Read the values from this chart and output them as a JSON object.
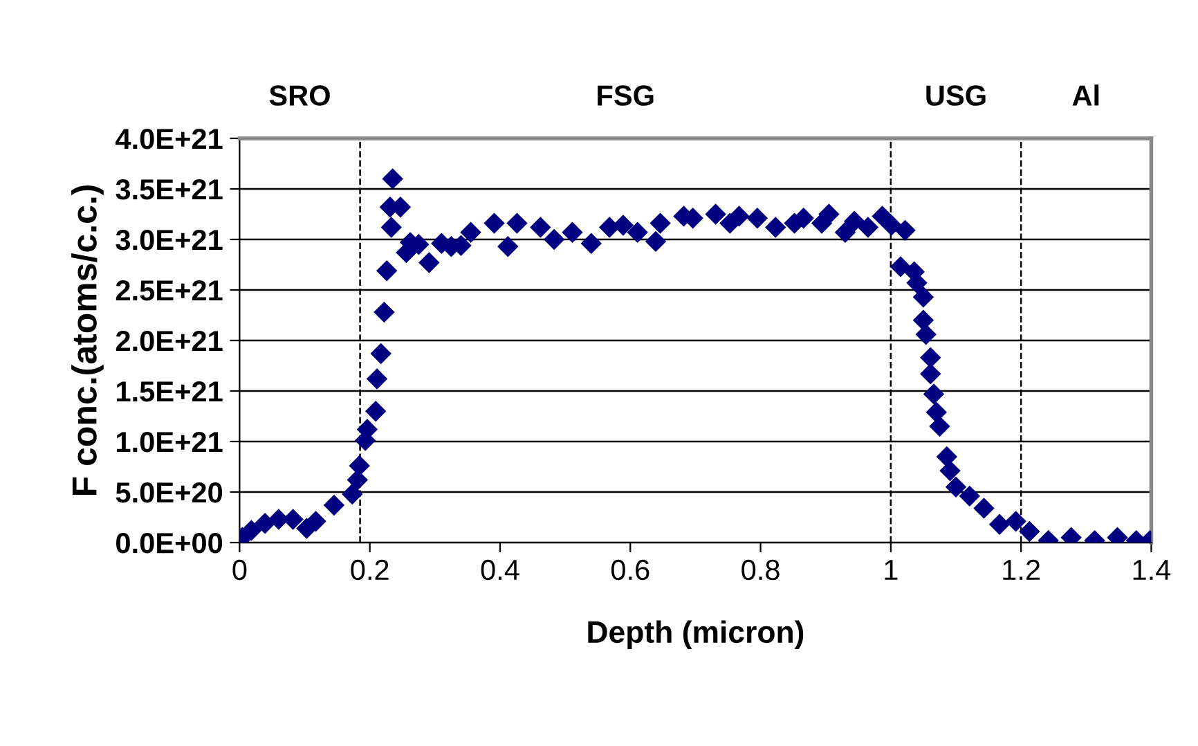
{
  "chart_data": {
    "type": "scatter",
    "xlabel": "Depth (micron)",
    "ylabel": "F conc.(atoms/c.c.)",
    "xlim": [
      0,
      1.4
    ],
    "xticks": [
      0,
      0.2,
      0.4,
      0.6,
      0.8,
      1,
      1.2,
      1.4
    ],
    "ylim": [
      0,
      4e+21
    ],
    "yticks": [
      {
        "value": 0,
        "label": "0.0E+00"
      },
      {
        "value": 5e+20,
        "label": "5.0E+20"
      },
      {
        "value": 1e+21,
        "label": "1.0E+21"
      },
      {
        "value": 1.5e+21,
        "label": "1.5E+21"
      },
      {
        "value": 2e+21,
        "label": "2.0E+21"
      },
      {
        "value": 2.5e+21,
        "label": "2.5E+21"
      },
      {
        "value": 3e+21,
        "label": "3.0E+21"
      },
      {
        "value": 3.5e+21,
        "label": "3.5E+21"
      },
      {
        "value": 4e+21,
        "label": "4.0E+21"
      }
    ],
    "grid": "y",
    "marker": "diamond",
    "legend": false,
    "ref_lines": [
      {
        "axis": "x",
        "value": 0.185,
        "line_style": "dashed",
        "color": "#000000"
      },
      {
        "axis": "x",
        "value": 1.0,
        "line_style": "dashed",
        "color": "#000000"
      },
      {
        "axis": "x",
        "value": 1.2,
        "line_style": "dashed",
        "color": "#000000"
      }
    ],
    "annotations": [
      "SRO",
      "FSG",
      "USG",
      "Al"
    ],
    "series": [
      {
        "color": "#000080",
        "x": [
          0.004,
          0.018,
          0.039,
          0.06,
          0.082,
          0.103,
          0.117,
          0.145,
          0.173,
          0.181,
          0.184,
          0.193,
          0.196,
          0.209,
          0.211,
          0.217,
          0.222,
          0.226,
          0.231,
          0.233,
          0.235,
          0.247,
          0.256,
          0.262,
          0.275,
          0.291,
          0.31,
          0.325,
          0.34,
          0.355,
          0.391,
          0.412,
          0.426,
          0.462,
          0.483,
          0.511,
          0.54,
          0.568,
          0.589,
          0.611,
          0.639,
          0.646,
          0.682,
          0.696,
          0.731,
          0.753,
          0.767,
          0.795,
          0.823,
          0.852,
          0.866,
          0.894,
          0.905,
          0.93,
          0.944,
          0.965,
          0.987,
          1.001,
          1.022,
          1.015,
          1.036,
          1.04,
          1.05,
          1.05,
          1.054,
          1.061,
          1.061,
          1.066,
          1.07,
          1.075,
          1.086,
          1.091,
          1.1,
          1.121,
          1.143,
          1.167,
          1.192,
          1.213,
          1.242,
          1.277,
          1.313,
          1.348,
          1.377,
          1.398
        ],
        "values": [
          5e+19,
          1.2e+20,
          1.9e+20,
          2.3e+20,
          2.3e+20,
          1.4e+20,
          2.1e+20,
          3.7e+20,
          4.8e+20,
          6.2e+20,
          7.6e+20,
          1.01e+21,
          1.12e+21,
          1.3e+21,
          1.62e+21,
          1.87e+21,
          2.28e+21,
          2.69e+21,
          3.32e+21,
          3.12e+21,
          3.6e+21,
          3.32e+21,
          2.87e+21,
          2.97e+21,
          2.95e+21,
          2.77e+21,
          2.96e+21,
          2.93e+21,
          2.94e+21,
          3.07e+21,
          3.16e+21,
          2.93e+21,
          3.16e+21,
          3.12e+21,
          3e+21,
          3.07e+21,
          2.96e+21,
          3.12e+21,
          3.14e+21,
          3.07e+21,
          2.98e+21,
          3.16e+21,
          3.23e+21,
          3.21e+21,
          3.25e+21,
          3.16e+21,
          3.23e+21,
          3.21e+21,
          3.12e+21,
          3.16e+21,
          3.21e+21,
          3.16e+21,
          3.25e+21,
          3.07e+21,
          3.18e+21,
          3.12e+21,
          3.23e+21,
          3.14e+21,
          3.09e+21,
          2.73e+21,
          2.68e+21,
          2.57e+21,
          2.43e+21,
          2.2e+21,
          2.06e+21,
          1.83e+21,
          1.67e+21,
          1.47e+21,
          1.29e+21,
          1.15e+21,
          8.5e+20,
          7.1e+20,
          5.5e+20,
          4.6e+20,
          3.4e+20,
          1.8e+20,
          2.1e+20,
          1.1e+20,
          2e+19,
          5e+19,
          2e+19,
          5e+19,
          2e+19,
          2e+19
        ]
      }
    ]
  }
}
